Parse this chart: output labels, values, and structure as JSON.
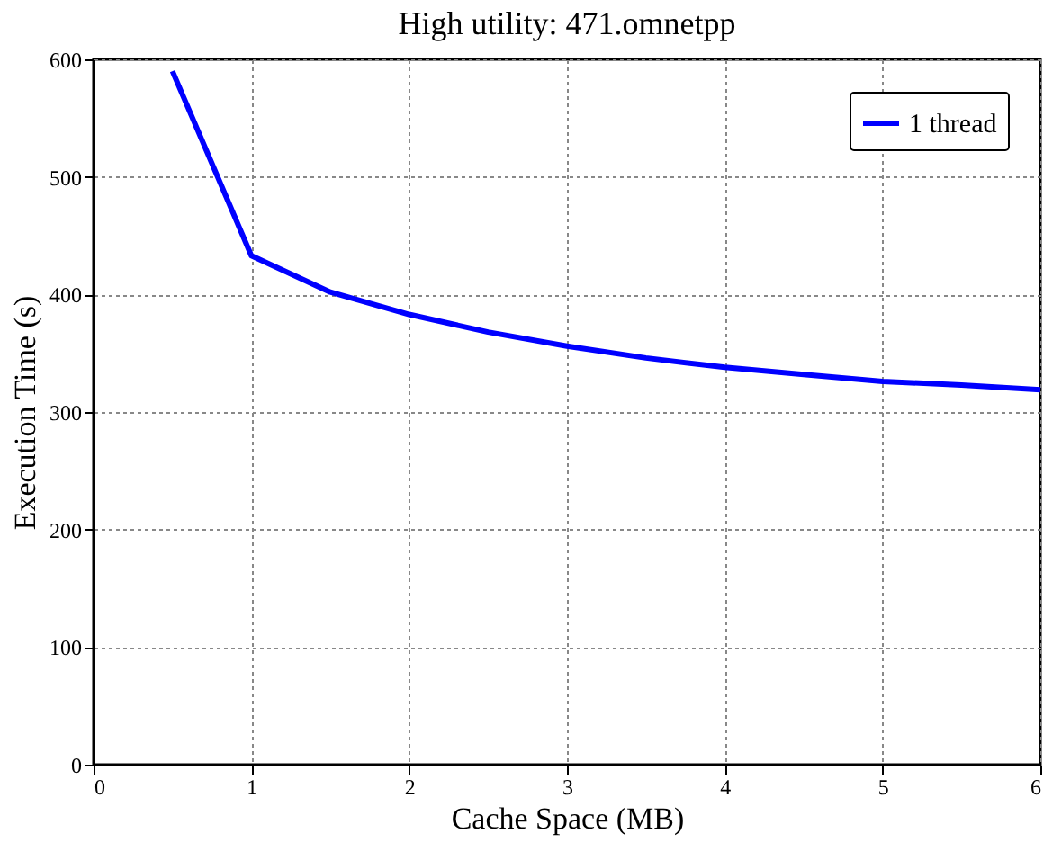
{
  "chart_data": {
    "type": "line",
    "title": "High utility: 471.omnetpp",
    "xlabel": "Cache Space (MB)",
    "ylabel": "Execution Time (s)",
    "x": [
      0.5,
      1,
      1.5,
      2,
      2.5,
      3,
      3.5,
      4,
      4.5,
      5,
      5.5,
      6
    ],
    "series": [
      {
        "name": "1 thread",
        "color": "#0000ff",
        "values": [
          590,
          433,
          402,
          383,
          368,
          356,
          346,
          338,
          332,
          326,
          323,
          319
        ]
      }
    ],
    "xlim": [
      0,
      6
    ],
    "xticks": [
      0,
      1,
      2,
      3,
      4,
      5,
      6
    ],
    "ylim": [
      0,
      600
    ],
    "yticks": [
      0,
      100,
      200,
      300,
      400,
      500,
      600
    ],
    "grid": true,
    "legend": "top right",
    "marker": "none",
    "line_style": "solid"
  }
}
